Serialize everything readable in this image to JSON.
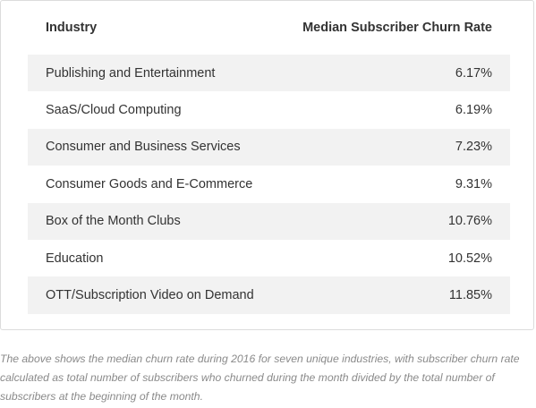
{
  "table": {
    "headers": {
      "industry": "Industry",
      "rate": "Median Subscriber Churn Rate"
    },
    "rows": [
      {
        "industry": "Publishing and Entertainment",
        "rate": "6.17%"
      },
      {
        "industry": "SaaS/Cloud Computing",
        "rate": "6.19%"
      },
      {
        "industry": "Consumer and Business Services",
        "rate": "7.23%"
      },
      {
        "industry": "Consumer Goods and E-Commerce",
        "rate": "9.31%"
      },
      {
        "industry": "Box of the Month Clubs",
        "rate": "10.76%"
      },
      {
        "industry": "Education",
        "rate": "10.52%"
      },
      {
        "industry": "OTT/Subscription Video on Demand",
        "rate": "11.85%"
      }
    ]
  },
  "caption": "The above shows the median churn rate during 2016 for seven unique industries, with subscriber churn rate calculated as total number of subscribers who churned during the month divided by the total number of subscribers at the beginning of the month.",
  "colors": {
    "shaded_row": "#f2f2f2",
    "text": "#333333",
    "caption": "#8a8a8a",
    "border": "#dcdcdc"
  }
}
